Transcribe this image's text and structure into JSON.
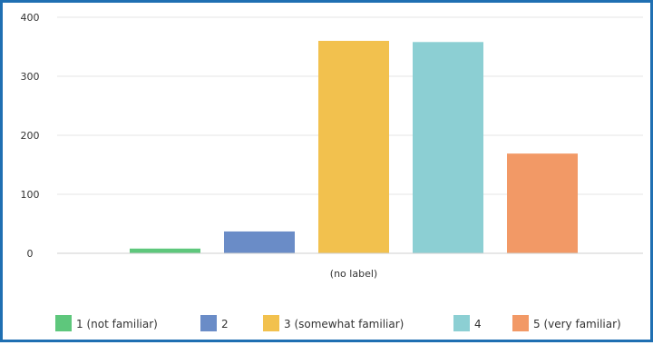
{
  "chart_data": {
    "type": "bar",
    "categories": [
      "(no label)"
    ],
    "series": [
      {
        "name": "1 (not familiar)",
        "values": [
          8
        ],
        "color": "#5ec77c"
      },
      {
        "name": "2",
        "values": [
          37
        ],
        "color": "#6a8cc7"
      },
      {
        "name": "3 (somewhat familiar)",
        "values": [
          360
        ],
        "color": "#f2c14e"
      },
      {
        "name": "4",
        "values": [
          358
        ],
        "color": "#8ccfd3"
      },
      {
        "name": "5 (very familiar)",
        "values": [
          169
        ],
        "color": "#f29966"
      }
    ],
    "y_ticks": [
      "0",
      "100",
      "200",
      "300",
      "400"
    ],
    "ylim": [
      0,
      400
    ],
    "grid": true,
    "legend_position": "bottom"
  }
}
